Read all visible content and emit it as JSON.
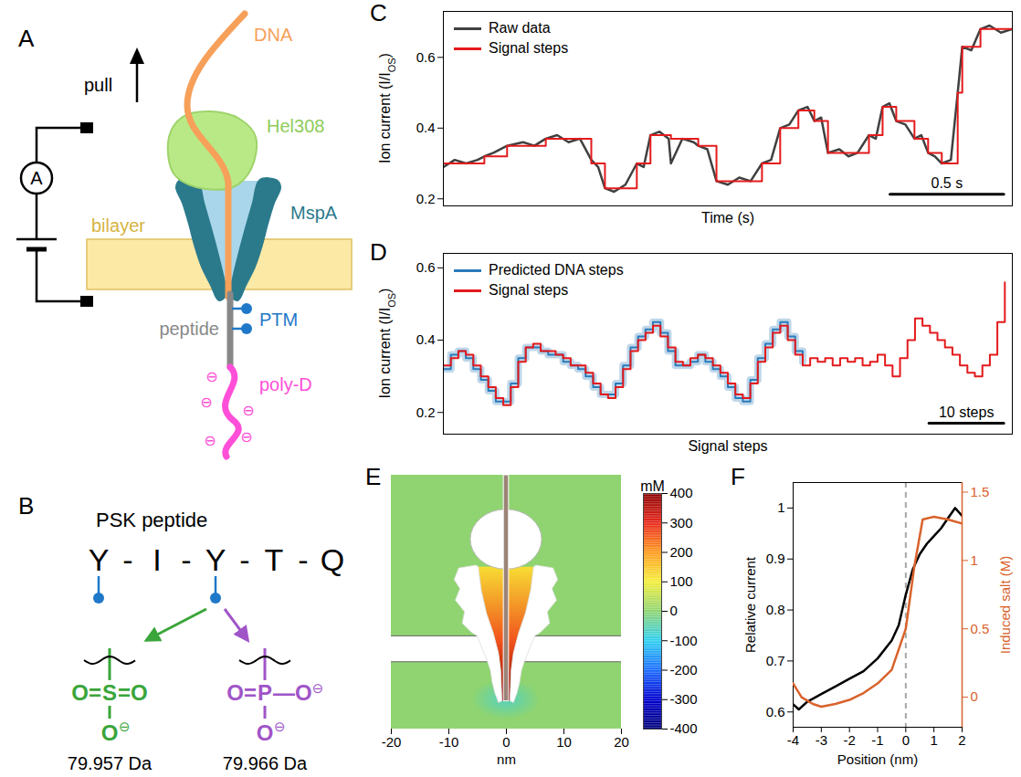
{
  "figure": {
    "A": {
      "letter": "A",
      "labels": {
        "pull": "pull",
        "dna": "DNA",
        "helicase": "Hel308",
        "bilayer": "bilayer",
        "pore": "MspA",
        "peptide": "peptide",
        "ptm": "PTM",
        "tail": "poly-D",
        "meter": "A"
      },
      "charge": "⊖"
    },
    "B": {
      "letter": "B",
      "title": "PSK peptide",
      "sequence": "Y - I - Y - T - Q",
      "ptm_residues": [
        1,
        3
      ],
      "modifications": [
        {
          "left": "O=",
          "atom": "S",
          "right": "=O",
          "bottom": "O",
          "charge": "⊖",
          "mass": "79.957 Da",
          "color": "#3aa53a"
        },
        {
          "left": "O=",
          "atom": "P",
          "right": "—O",
          "right_charge": "⊖",
          "bottom": "O",
          "charge": "⊖",
          "mass": "79.966 Da",
          "color": "#a055c8"
        }
      ]
    }
  },
  "chart_data": [
    {
      "panel": "C",
      "type": "line",
      "xlabel": "Time (s)",
      "ylabel": {
        "text": "Ion current (I/I",
        "sub": "OS",
        "end": ")"
      },
      "xlim": [
        0,
        2.5
      ],
      "ylim": [
        0.18,
        0.73
      ],
      "yticks": [
        0.2,
        0.4,
        0.6
      ],
      "tick_labels": "y",
      "legend": "top-left",
      "scale_bar": {
        "value": 0.5,
        "label": "0.5 s"
      },
      "series": [
        {
          "name": "Raw data",
          "color": "#404040",
          "type": "line",
          "x": [
            0,
            0.05,
            0.1,
            0.15,
            0.18,
            0.22,
            0.28,
            0.35,
            0.4,
            0.45,
            0.5,
            0.55,
            0.6,
            0.65,
            0.68,
            0.71,
            0.75,
            0.8,
            0.85,
            0.88,
            0.91,
            0.95,
            0.99,
            1.0,
            1.05,
            1.1,
            1.12,
            1.16,
            1.2,
            1.25,
            1.3,
            1.35,
            1.4,
            1.44,
            1.48,
            1.52,
            1.56,
            1.6,
            1.63,
            1.66,
            1.69,
            1.74,
            1.78,
            1.82,
            1.87,
            1.9,
            1.93,
            1.96,
            1.99,
            2.03,
            2.07,
            2.1,
            2.13,
            2.16,
            2.19,
            2.23,
            2.26,
            2.28,
            2.32,
            2.36,
            2.4,
            2.45,
            2.5
          ],
          "values": [
            0.29,
            0.31,
            0.3,
            0.31,
            0.32,
            0.33,
            0.35,
            0.36,
            0.35,
            0.37,
            0.38,
            0.36,
            0.37,
            0.31,
            0.29,
            0.23,
            0.22,
            0.24,
            0.3,
            0.29,
            0.38,
            0.39,
            0.37,
            0.3,
            0.37,
            0.36,
            0.35,
            0.34,
            0.25,
            0.24,
            0.26,
            0.25,
            0.3,
            0.31,
            0.4,
            0.41,
            0.45,
            0.46,
            0.42,
            0.43,
            0.33,
            0.34,
            0.32,
            0.33,
            0.38,
            0.37,
            0.46,
            0.47,
            0.42,
            0.41,
            0.37,
            0.38,
            0.33,
            0.32,
            0.3,
            0.31,
            0.5,
            0.63,
            0.62,
            0.68,
            0.69,
            0.67,
            0.68
          ]
        },
        {
          "name": "Signal steps",
          "color": "#e41a1c",
          "type": "step",
          "x": [
            0,
            0.18,
            0.28,
            0.45,
            0.65,
            0.71,
            0.85,
            0.91,
            1.0,
            1.12,
            1.2,
            1.4,
            1.48,
            1.56,
            1.63,
            1.69,
            1.87,
            1.93,
            1.99,
            2.07,
            2.13,
            2.19,
            2.26,
            2.28,
            2.36,
            2.5
          ],
          "values": [
            0.3,
            0.32,
            0.35,
            0.37,
            0.3,
            0.23,
            0.3,
            0.38,
            0.37,
            0.35,
            0.25,
            0.3,
            0.4,
            0.45,
            0.42,
            0.33,
            0.38,
            0.46,
            0.42,
            0.37,
            0.33,
            0.3,
            0.5,
            0.63,
            0.68,
            0.68
          ]
        }
      ]
    },
    {
      "panel": "D",
      "type": "line",
      "xlabel": "Signal steps",
      "ylabel": {
        "text": "Ion current (I/I",
        "sub": "OS",
        "end": ")"
      },
      "xlim": [
        0,
        76
      ],
      "ylim": [
        0.14,
        0.64
      ],
      "yticks": [
        0.2,
        0.4,
        0.6
      ],
      "tick_labels": "y",
      "legend": "top-left",
      "scale_bar": {
        "value": 10,
        "label": "10 steps"
      },
      "series": [
        {
          "name": "Predicted DNA steps",
          "color": "#2b7bba",
          "type": "step",
          "x": [
            0,
            1,
            2,
            3,
            4,
            5,
            6,
            7,
            8,
            9,
            10,
            11,
            12,
            13,
            14,
            15,
            16,
            17,
            18,
            19,
            20,
            21,
            22,
            23,
            24,
            25,
            26,
            27,
            28,
            29,
            30,
            31,
            32,
            33,
            34,
            35,
            36,
            37,
            38,
            39,
            40,
            41,
            42,
            43,
            44,
            45,
            46,
            47,
            48
          ],
          "values": [
            0.32,
            0.36,
            0.37,
            0.35,
            0.32,
            0.29,
            0.26,
            0.23,
            0.23,
            0.28,
            0.35,
            0.38,
            0.38,
            0.37,
            0.36,
            0.36,
            0.34,
            0.33,
            0.32,
            0.3,
            0.27,
            0.25,
            0.25,
            0.28,
            0.33,
            0.38,
            0.41,
            0.43,
            0.45,
            0.42,
            0.37,
            0.33,
            0.33,
            0.34,
            0.36,
            0.34,
            0.32,
            0.3,
            0.27,
            0.24,
            0.23,
            0.29,
            0.35,
            0.39,
            0.43,
            0.45,
            0.41,
            0.37,
            0.34
          ]
        },
        {
          "name": "Signal steps",
          "color": "#e41a1c",
          "type": "step",
          "x": [
            0,
            1,
            2,
            3,
            4,
            5,
            6,
            7,
            8,
            9,
            10,
            11,
            12,
            13,
            14,
            15,
            16,
            17,
            18,
            19,
            20,
            21,
            22,
            23,
            24,
            25,
            26,
            27,
            28,
            29,
            30,
            31,
            32,
            33,
            34,
            35,
            36,
            37,
            38,
            39,
            40,
            41,
            42,
            43,
            44,
            45,
            46,
            47,
            48,
            49,
            50,
            51,
            52,
            53,
            54,
            55,
            56,
            57,
            58,
            59,
            60,
            61,
            62,
            63,
            64,
            65,
            66,
            67,
            68,
            69,
            70,
            71,
            72,
            73,
            74,
            75
          ],
          "values": [
            0.33,
            0.35,
            0.37,
            0.36,
            0.33,
            0.3,
            0.27,
            0.24,
            0.22,
            0.27,
            0.34,
            0.38,
            0.39,
            0.37,
            0.37,
            0.36,
            0.35,
            0.33,
            0.33,
            0.31,
            0.28,
            0.25,
            0.24,
            0.27,
            0.32,
            0.37,
            0.4,
            0.42,
            0.44,
            0.41,
            0.38,
            0.34,
            0.33,
            0.35,
            0.36,
            0.35,
            0.33,
            0.31,
            0.28,
            0.25,
            0.24,
            0.28,
            0.34,
            0.38,
            0.42,
            0.44,
            0.4,
            0.36,
            0.33,
            0.35,
            0.34,
            0.35,
            0.33,
            0.35,
            0.34,
            0.35,
            0.33,
            0.34,
            0.36,
            0.33,
            0.3,
            0.35,
            0.4,
            0.46,
            0.44,
            0.42,
            0.4,
            0.38,
            0.36,
            0.33,
            0.31,
            0.3,
            0.33,
            0.36,
            0.45,
            0.56
          ]
        }
      ]
    },
    {
      "panel": "E",
      "type": "heatmap",
      "xlabel": "nm",
      "xlim": [
        -20,
        20
      ],
      "xticks": [
        -20,
        -10,
        0,
        10,
        20
      ],
      "tick_labels": "x",
      "colorbar": {
        "label": "mM",
        "range": [
          -400,
          400
        ],
        "ticks": [
          400,
          300,
          200,
          100,
          0,
          -100,
          -200,
          -300,
          -400
        ]
      },
      "cells": [
        0,
        120,
        260,
        400,
        -60
      ]
    },
    {
      "panel": "F",
      "type": "line",
      "xlabel": "Position (nm)",
      "ylabel": "Relative current",
      "y2label": "Induced salt (M)",
      "xlim": [
        -4,
        2
      ],
      "xticks": [
        -4,
        -3,
        -2,
        -1,
        0,
        1,
        2
      ],
      "ylim": [
        0.57,
        1.05
      ],
      "yticks": [
        0.6,
        0.7,
        0.8,
        0.9,
        1
      ],
      "y2lim": [
        -0.22,
        1.57
      ],
      "y2ticks": [
        0,
        0.5,
        1,
        1.5
      ],
      "vline": {
        "x": 0,
        "color": "#a6a6a6",
        "line_style": "dashed"
      },
      "series": [
        {
          "color": "#000000",
          "x": [
            -4,
            -3.8,
            -3.5,
            -3,
            -2.5,
            -2,
            -1.5,
            -1,
            -0.5,
            -0.25,
            0,
            0.25,
            0.5,
            0.75,
            1,
            1.25,
            1.5,
            1.75,
            2
          ],
          "values": [
            0.615,
            0.605,
            0.62,
            0.635,
            0.65,
            0.665,
            0.68,
            0.705,
            0.74,
            0.77,
            0.83,
            0.88,
            0.91,
            0.93,
            0.945,
            0.96,
            0.98,
            1.0,
            0.985
          ]
        },
        {
          "color": "#d9622b",
          "axis": "y2",
          "x": [
            -4,
            -3.7,
            -3.3,
            -3,
            -2.5,
            -2,
            -1.5,
            -1,
            -0.5,
            0,
            0.3,
            0.6,
            1,
            1.5,
            2
          ],
          "values": [
            0.1,
            0.0,
            -0.05,
            -0.07,
            -0.05,
            -0.02,
            0.03,
            0.1,
            0.2,
            0.5,
            0.95,
            1.3,
            1.32,
            1.3,
            1.27
          ]
        }
      ]
    }
  ]
}
